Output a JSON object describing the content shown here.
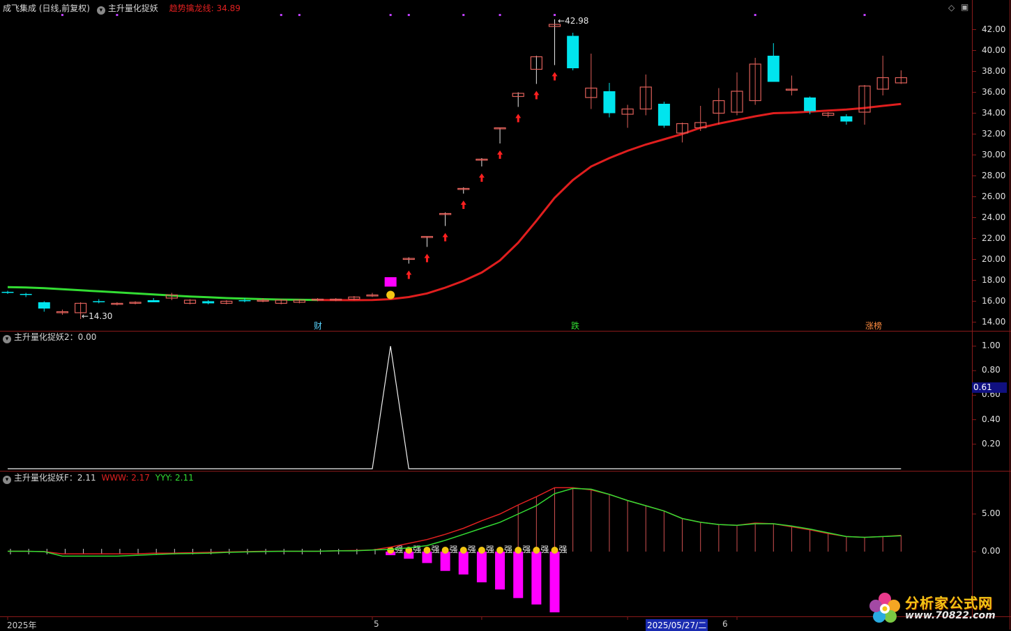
{
  "header": {
    "stock": "成飞集成 (日线,前复权)",
    "indicator": "主升量化捉妖",
    "trend_label": "趋势擒龙线:",
    "trend_value": "34.89"
  },
  "panel2": {
    "title": "主升量化捉妖2：0.00"
  },
  "panel3": {
    "title": "主升量化捉妖F：2.11",
    "www": "WWW: 2.17",
    "yyy": "YYY: 2.11"
  },
  "controls": {
    "diamond": "◇",
    "window": "▣"
  },
  "price_axis": [
    "42.00",
    "40.00",
    "38.00",
    "36.00",
    "34.00",
    "32.00",
    "30.00",
    "28.00",
    "26.00",
    "24.00",
    "22.00",
    "20.00",
    "18.00",
    "16.00",
    "14.00"
  ],
  "sub_axis": [
    "1.00",
    "0.80",
    "0.60",
    "0.40",
    "0.20"
  ],
  "f_axis": [
    "5.00",
    "0.00"
  ],
  "current_badge": "0.61",
  "annotations": {
    "high": "42.98",
    "low": "14.30",
    "cai": "财",
    "die": "跌",
    "zhangbang": "涨榜",
    "qiang": "强"
  },
  "x_labels": {
    "year": "2025年",
    "may": "5",
    "date": "2025/05/27/二",
    "june": "6"
  },
  "watermark": {
    "title": "分析家公式网",
    "url": "www.70822.com"
  },
  "colors": {
    "up": "#e0605a",
    "down": "#00e5ee",
    "limit": "#ff00ff",
    "ma_red": "#e01e1e",
    "ma_green": "#33dd33"
  },
  "chart_data": {
    "type": "candlestick",
    "candles": [
      {
        "o": 16.9,
        "h": 17.0,
        "l": 16.7,
        "c": 16.8
      },
      {
        "o": 16.7,
        "h": 16.8,
        "l": 16.4,
        "c": 16.6
      },
      {
        "o": 15.9,
        "h": 16.0,
        "l": 15.0,
        "c": 15.3
      },
      {
        "o": 14.9,
        "h": 15.2,
        "l": 14.7,
        "c": 15.0
      },
      {
        "o": 14.9,
        "h": 15.9,
        "l": 14.3,
        "c": 15.8
      },
      {
        "o": 16.0,
        "h": 16.2,
        "l": 15.8,
        "c": 15.9
      },
      {
        "o": 15.7,
        "h": 15.9,
        "l": 15.6,
        "c": 15.8
      },
      {
        "o": 15.8,
        "h": 16.0,
        "l": 15.7,
        "c": 15.9
      },
      {
        "o": 16.1,
        "h": 16.3,
        "l": 15.9,
        "c": 15.9
      },
      {
        "o": 16.3,
        "h": 16.8,
        "l": 16.1,
        "c": 16.6
      },
      {
        "o": 15.8,
        "h": 16.2,
        "l": 15.7,
        "c": 16.1
      },
      {
        "o": 16.0,
        "h": 16.1,
        "l": 15.7,
        "c": 15.8
      },
      {
        "o": 15.8,
        "h": 16.1,
        "l": 15.7,
        "c": 16.0
      },
      {
        "o": 16.1,
        "h": 16.3,
        "l": 15.9,
        "c": 16.0
      },
      {
        "o": 16.1,
        "h": 16.3,
        "l": 15.9,
        "c": 16.1
      },
      {
        "o": 15.8,
        "h": 16.2,
        "l": 15.7,
        "c": 16.1
      },
      {
        "o": 15.9,
        "h": 16.2,
        "l": 15.8,
        "c": 16.1
      },
      {
        "o": 16.1,
        "h": 16.3,
        "l": 16.0,
        "c": 16.2
      },
      {
        "o": 16.1,
        "h": 16.3,
        "l": 16.0,
        "c": 16.2
      },
      {
        "o": 16.2,
        "h": 16.5,
        "l": 16.1,
        "c": 16.4
      },
      {
        "o": 16.6,
        "h": 16.8,
        "l": 16.4,
        "c": 16.6
      },
      {
        "o": 17.4,
        "h": 18.3,
        "l": 17.4,
        "c": 18.3
      },
      {
        "o": 20.1,
        "h": 20.2,
        "l": 19.6,
        "c": 20.1
      },
      {
        "o": 22.2,
        "h": 22.2,
        "l": 21.2,
        "c": 22.2
      },
      {
        "o": 24.3,
        "h": 24.5,
        "l": 23.2,
        "c": 24.4
      },
      {
        "o": 26.8,
        "h": 26.9,
        "l": 26.3,
        "c": 26.8
      },
      {
        "o": 29.6,
        "h": 29.7,
        "l": 28.9,
        "c": 29.6
      },
      {
        "o": 32.6,
        "h": 32.6,
        "l": 31.1,
        "c": 32.6
      },
      {
        "o": 35.6,
        "h": 36.0,
        "l": 34.6,
        "c": 35.9
      },
      {
        "o": 38.2,
        "h": 39.5,
        "l": 36.8,
        "c": 39.4
      },
      {
        "o": 42.3,
        "h": 42.98,
        "l": 38.6,
        "c": 42.5
      },
      {
        "o": 41.4,
        "h": 41.7,
        "l": 38.1,
        "c": 38.3
      },
      {
        "o": 35.5,
        "h": 39.7,
        "l": 34.4,
        "c": 36.4
      },
      {
        "o": 36.1,
        "h": 36.9,
        "l": 33.6,
        "c": 34.0
      },
      {
        "o": 33.9,
        "h": 34.8,
        "l": 32.6,
        "c": 34.4
      },
      {
        "o": 34.4,
        "h": 37.7,
        "l": 33.8,
        "c": 36.5
      },
      {
        "o": 34.9,
        "h": 35.1,
        "l": 32.6,
        "c": 32.8
      },
      {
        "o": 32.1,
        "h": 33.1,
        "l": 31.2,
        "c": 33.0
      },
      {
        "o": 32.6,
        "h": 34.7,
        "l": 32.3,
        "c": 33.1
      },
      {
        "o": 34.0,
        "h": 36.4,
        "l": 32.9,
        "c": 35.2
      },
      {
        "o": 34.1,
        "h": 37.9,
        "l": 33.8,
        "c": 36.1
      },
      {
        "o": 35.2,
        "h": 39.3,
        "l": 34.8,
        "c": 38.7
      },
      {
        "o": 39.5,
        "h": 40.7,
        "l": 37.0,
        "c": 37.0
      },
      {
        "o": 36.2,
        "h": 37.6,
        "l": 35.7,
        "c": 36.3
      },
      {
        "o": 35.5,
        "h": 35.6,
        "l": 33.9,
        "c": 34.2
      },
      {
        "o": 33.8,
        "h": 34.1,
        "l": 33.6,
        "c": 34.0
      },
      {
        "o": 33.7,
        "h": 33.9,
        "l": 32.9,
        "c": 33.2
      },
      {
        "o": 34.1,
        "h": 36.7,
        "l": 32.9,
        "c": 36.6
      },
      {
        "o": 36.3,
        "h": 39.5,
        "l": 35.7,
        "c": 37.4
      },
      {
        "o": 36.9,
        "h": 38.1,
        "l": 36.8,
        "c": 37.4
      }
    ],
    "trend_line": [
      17.35,
      17.32,
      17.25,
      17.15,
      17.05,
      16.95,
      16.85,
      16.75,
      16.65,
      16.55,
      16.45,
      16.38,
      16.3,
      16.25,
      16.2,
      16.16,
      16.14,
      16.12,
      16.11,
      16.1,
      16.12,
      16.2,
      16.4,
      16.75,
      17.3,
      17.95,
      18.75,
      19.9,
      21.6,
      23.7,
      25.9,
      27.6,
      28.9,
      29.7,
      30.4,
      31.0,
      31.5,
      32.0,
      32.6,
      33.0,
      33.35,
      33.7,
      34.0,
      34.05,
      34.15,
      34.25,
      34.35,
      34.5,
      34.7,
      34.89
    ],
    "ylim": [
      13.5,
      43.5
    ],
    "signal2": [
      0,
      0,
      0,
      0,
      0,
      0,
      0,
      0,
      0,
      0,
      0,
      0,
      0,
      0,
      0,
      0,
      0,
      0,
      0,
      0,
      0,
      1,
      0,
      0,
      0,
      0,
      0,
      0,
      0,
      0,
      0,
      0,
      0,
      0,
      0,
      0,
      0,
      0,
      0,
      0,
      0,
      0,
      0,
      0,
      0,
      0,
      0,
      0,
      0,
      0
    ],
    "www": [
      0.05,
      0.05,
      0.0,
      -0.3,
      -0.3,
      -0.3,
      -0.3,
      -0.3,
      -0.2,
      -0.2,
      -0.15,
      -0.1,
      -0.05,
      0.0,
      0.05,
      0.05,
      0.05,
      0.05,
      0.1,
      0.15,
      0.2,
      0.6,
      1.1,
      1.6,
      2.3,
      3.1,
      4.1,
      5.0,
      6.2,
      7.3,
      8.5,
      8.5,
      8.2,
      7.6,
      6.8,
      6.1,
      5.4,
      4.4,
      3.9,
      3.6,
      3.5,
      3.8,
      3.7,
      3.3,
      2.9,
      2.4,
      2.0,
      1.9,
      2.0,
      2.17
    ],
    "yyy": [
      0.05,
      0.05,
      0.0,
      -0.6,
      -0.6,
      -0.6,
      -0.6,
      -0.5,
      -0.4,
      -0.3,
      -0.25,
      -0.2,
      -0.1,
      -0.05,
      0.0,
      0.05,
      0.05,
      0.05,
      0.1,
      0.1,
      0.2,
      0.3,
      0.5,
      0.8,
      1.5,
      2.3,
      3.1,
      3.9,
      5.0,
      6.1,
      7.7,
      8.4,
      8.3,
      7.6,
      6.8,
      6.1,
      5.4,
      4.4,
      3.9,
      3.6,
      3.5,
      3.7,
      3.7,
      3.4,
      3.0,
      2.5,
      2.0,
      1.9,
      2.0,
      2.11
    ],
    "hist": [
      0,
      0,
      0,
      0,
      0,
      0,
      0,
      0,
      0,
      0,
      0,
      0,
      0,
      0,
      0,
      0,
      0,
      0,
      0,
      0,
      0,
      -0.5,
      -1.0,
      -1.6,
      -2.7,
      -3.2,
      -4.3,
      -5.3,
      -6.5,
      -7.4,
      -8.5,
      0,
      0,
      0,
      0,
      0,
      0,
      0,
      0,
      0,
      0,
      0,
      0,
      0,
      0,
      0,
      0,
      0,
      0,
      0
    ],
    "f_ylim": [
      -8.6,
      8.9
    ]
  }
}
